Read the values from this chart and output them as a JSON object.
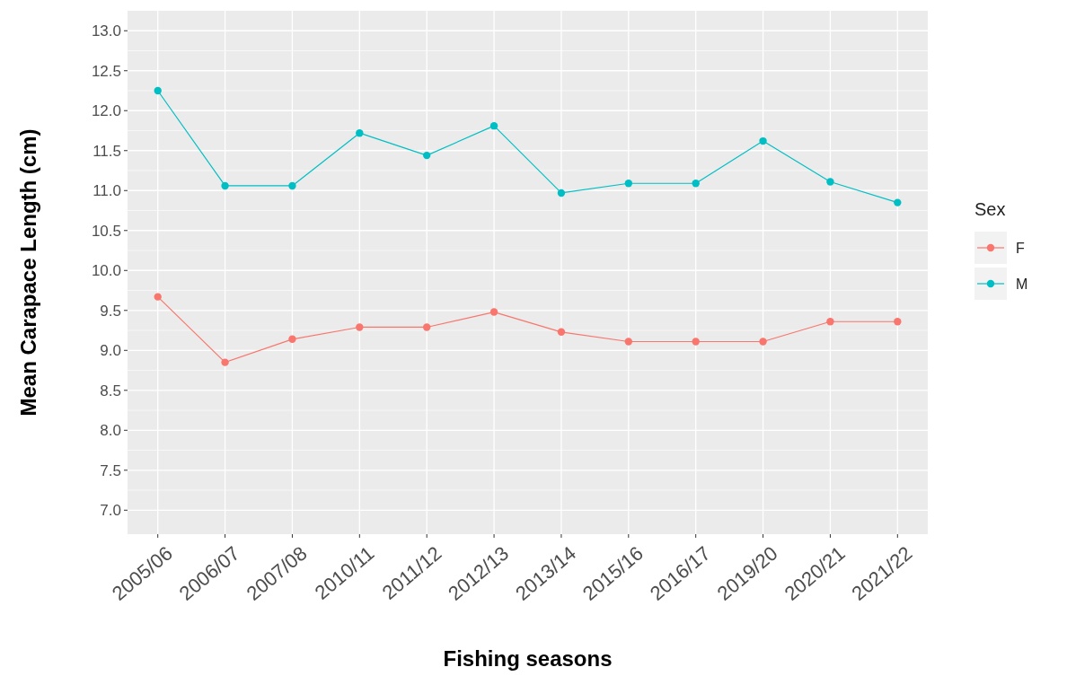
{
  "chart_data": {
    "type": "line",
    "xlabel": "Fishing seasons",
    "ylabel": "Mean Carapace Length (cm)",
    "legend_title": "Sex",
    "legend": "right",
    "marker": "circle",
    "grid": true,
    "categories": [
      "2005/06",
      "2006/07",
      "2007/08",
      "2010/11",
      "2011/12",
      "2012/13",
      "2013/14",
      "2015/16",
      "2016/17",
      "2019/20",
      "2020/21",
      "2021/22"
    ],
    "ylim": [
      6.7,
      13.25
    ],
    "yticks": [
      {
        "value": 7,
        "label": "7.0"
      },
      {
        "value": 7.5,
        "label": "7.5"
      },
      {
        "value": 8,
        "label": "8.0"
      },
      {
        "value": 8.5,
        "label": "8.5"
      },
      {
        "value": 9,
        "label": "9.0"
      },
      {
        "value": 9.5,
        "label": "9.5"
      },
      {
        "value": 10,
        "label": "10.0"
      },
      {
        "value": 10.5,
        "label": "10.5"
      },
      {
        "value": 11,
        "label": "11.0"
      },
      {
        "value": 11.5,
        "label": "11.5"
      },
      {
        "value": 12,
        "label": "12.0"
      },
      {
        "value": 12.5,
        "label": "12.5"
      },
      {
        "value": 13,
        "label": "13.0"
      }
    ],
    "series": [
      {
        "name": "F",
        "color": "#f8766d",
        "values": [
          9.67,
          8.85,
          9.14,
          9.29,
          9.29,
          9.48,
          9.23,
          9.11,
          9.11,
          9.11,
          9.36,
          9.36
        ]
      },
      {
        "name": "M",
        "color": "#00bfc4",
        "values": [
          12.25,
          11.06,
          11.06,
          11.72,
          11.44,
          11.81,
          10.97,
          11.09,
          11.09,
          11.62,
          11.11,
          10.85
        ]
      }
    ]
  }
}
